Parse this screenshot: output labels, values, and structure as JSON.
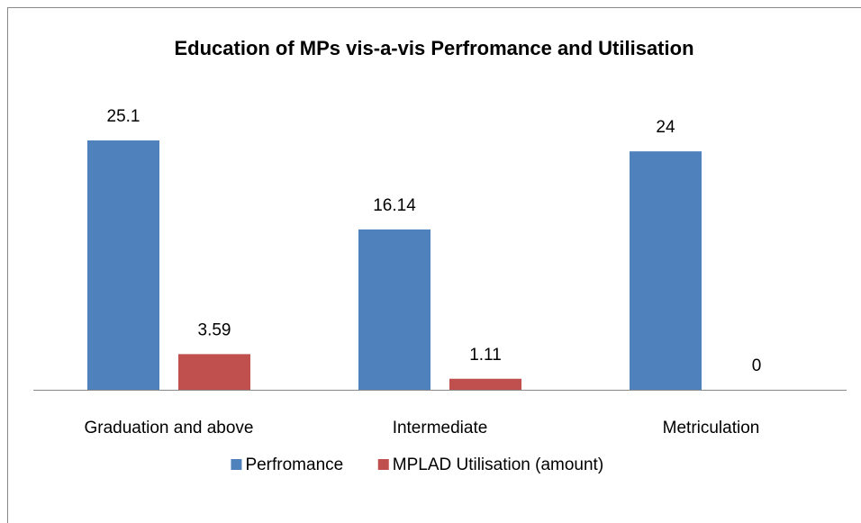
{
  "chart_data": {
    "type": "bar",
    "title": "Education of MPs vis-a-vis Perfromance and Utilisation",
    "categories": [
      "Graduation and above",
      "Intermediate",
      "Metriculation"
    ],
    "series": [
      {
        "name": "Perfromance",
        "color": "#4f81bd",
        "values": [
          25.1,
          16.14,
          24
        ]
      },
      {
        "name": "MPLAD Utilisation (amount)",
        "color": "#c0504d",
        "values": [
          3.59,
          1.11,
          0
        ]
      }
    ],
    "legend": "bottom"
  }
}
